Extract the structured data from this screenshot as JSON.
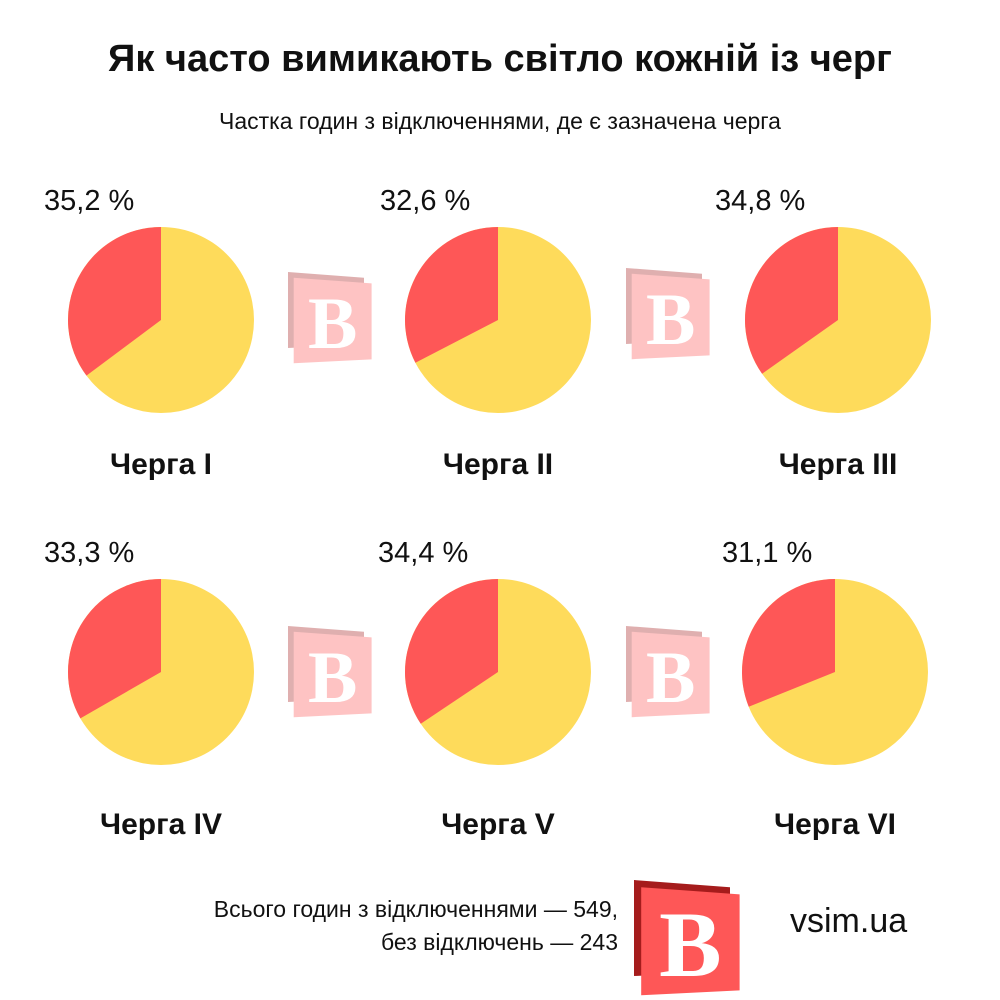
{
  "title": "Як часто вимикають світло кожній із черг",
  "subtitle": "Частка годин з відключеннями, де є зазначена черга",
  "colors": {
    "outage": "#fe5757",
    "rest": "#fedb5b",
    "logo": "#fe5757",
    "logo_dark": "#a51c1c"
  },
  "chart_data": [
    {
      "type": "pie",
      "title": "Черга I",
      "value_label": "35,2 %",
      "values": [
        35.2,
        64.8
      ]
    },
    {
      "type": "pie",
      "title": "Черга II",
      "value_label": "32,6 %",
      "values": [
        32.6,
        67.4
      ]
    },
    {
      "type": "pie",
      "title": "Черга III",
      "value_label": "34,8 %",
      "values": [
        34.8,
        65.2
      ]
    },
    {
      "type": "pie",
      "title": "Черга IV",
      "value_label": "33,3 %",
      "values": [
        33.3,
        66.7
      ]
    },
    {
      "type": "pie",
      "title": "Черга V",
      "value_label": "34,4 %",
      "values": [
        34.4,
        65.6
      ]
    },
    {
      "type": "pie",
      "title": "Черга VI",
      "value_label": "31,1 %",
      "values": [
        31.1,
        68.9
      ]
    }
  ],
  "footer": {
    "line1": "Всього годин з відключеннями — 549,",
    "line2": "без відключень — 243"
  },
  "brand": {
    "logo_letter": "В",
    "site": "vsim.ua"
  }
}
